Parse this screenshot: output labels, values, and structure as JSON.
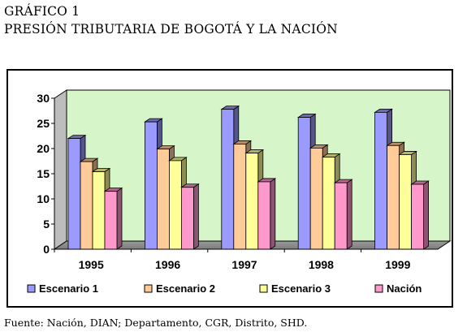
{
  "title_line1": "GRÁFICO 1",
  "title_line2": "PRESIÓN TRIBUTARIA DE BOGOTÁ Y LA NACIÓN",
  "source": "Fuente: Nación, DIAN; Departamento, CGR, Distrito, SHD.",
  "chart_data": {
    "type": "bar",
    "categories": [
      "1995",
      "1996",
      "1997",
      "1998",
      "1999"
    ],
    "ylim": [
      0,
      30
    ],
    "yticks": [
      "0",
      "5",
      "10",
      "15",
      "20",
      "25",
      "30"
    ],
    "series": [
      {
        "name": "Escenario 1",
        "values": [
          22.0,
          25.3,
          27.8,
          26.2,
          27.2
        ],
        "color": "#9A9AFF"
      },
      {
        "name": "Escenario 2",
        "values": [
          17.4,
          19.9,
          20.9,
          20.1,
          20.6
        ],
        "color": "#FFCC99"
      },
      {
        "name": "Escenario 3",
        "values": [
          15.4,
          17.6,
          19.1,
          18.3,
          18.8
        ],
        "color": "#FFFF99"
      },
      {
        "name": "Nación",
        "values": [
          11.5,
          12.3,
          13.4,
          13.2,
          12.9
        ],
        "color": "#FF99CC"
      }
    ],
    "plot_background": "#D6F5C8",
    "grid": false,
    "legend_position": "bottom"
  }
}
